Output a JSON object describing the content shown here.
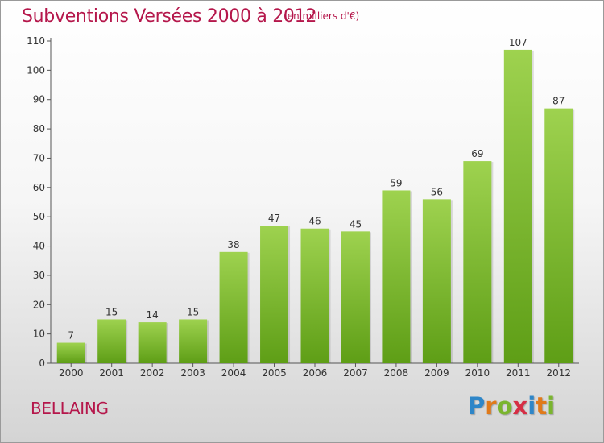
{
  "title": "Subventions Versées 2000 à 2012",
  "subtitle": "(en milliers d'€)",
  "commune": "BELLAING",
  "logo": {
    "letters": [
      {
        "ch": "P",
        "color": "#2e86c8"
      },
      {
        "ch": "r",
        "color": "#e07a1a"
      },
      {
        "ch": "o",
        "color": "#7ab52e"
      },
      {
        "ch": "x",
        "color": "#d62e45"
      },
      {
        "ch": "i",
        "color": "#2e86c8"
      },
      {
        "ch": "t",
        "color": "#e07a1a"
      },
      {
        "ch": "i",
        "color": "#7ab52e"
      }
    ]
  },
  "chart_data": {
    "type": "bar",
    "title": "Subventions Versées 2000 à 2012",
    "subtitle": "(en milliers d'€)",
    "categories": [
      "2000",
      "2001",
      "2002",
      "2003",
      "2004",
      "2005",
      "2006",
      "2007",
      "2008",
      "2009",
      "2010",
      "2011",
      "2012"
    ],
    "values": [
      7,
      15,
      14,
      15,
      38,
      47,
      46,
      45,
      59,
      56,
      69,
      107,
      87
    ],
    "ylim": [
      0,
      110
    ],
    "yticks": [
      0,
      10,
      20,
      30,
      40,
      50,
      60,
      70,
      80,
      90,
      100,
      110
    ],
    "grid": false,
    "bar_color_top": "#9ed24f",
    "bar_color_bottom": "#5e9e16"
  }
}
